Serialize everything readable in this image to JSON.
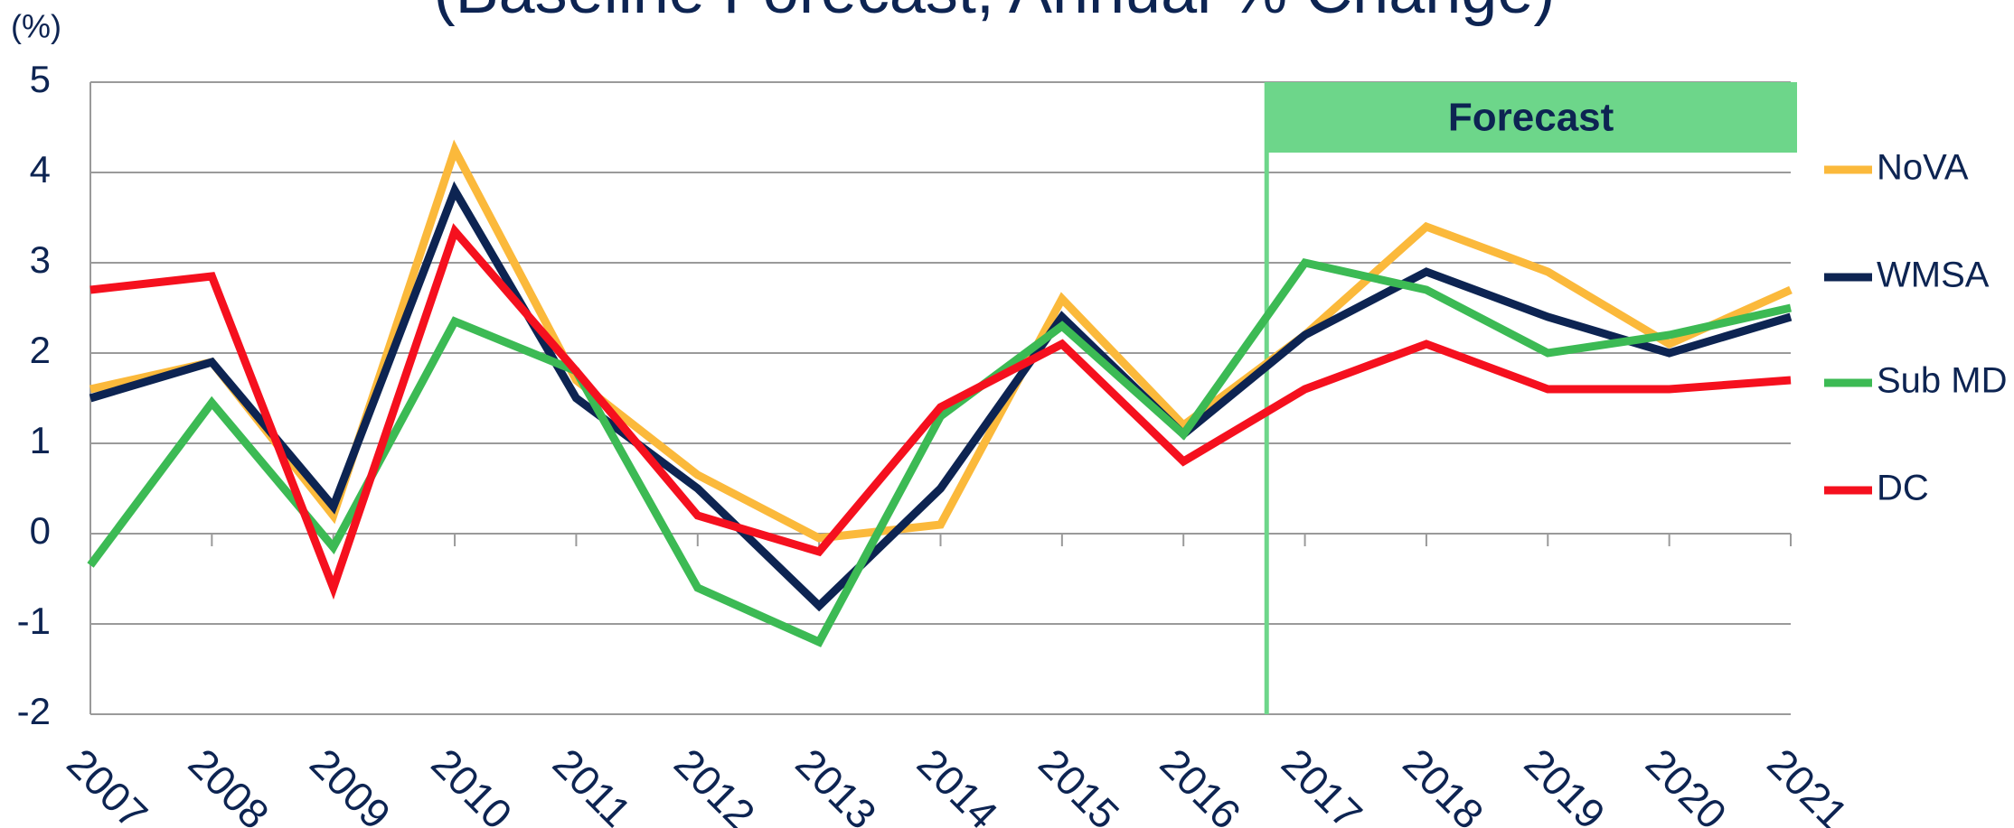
{
  "chart_data": {
    "type": "line",
    "title": "(Baseline Forecast, Annual % Change)",
    "ylabel": "(%)",
    "x": [
      2007,
      2008,
      2009,
      2010,
      2011,
      2012,
      2013,
      2014,
      2015,
      2016,
      2017,
      2018,
      2019,
      2020,
      2021
    ],
    "xlim": [
      2007,
      2021
    ],
    "xticks": [
      2007,
      2008,
      2009,
      2010,
      2011,
      2012,
      2013,
      2014,
      2015,
      2016,
      2017,
      2018,
      2019,
      2020,
      2021
    ],
    "ylim": [
      -2,
      5
    ],
    "yticks": [
      -2,
      -1,
      0,
      1,
      2,
      3,
      4,
      5
    ],
    "grid": true,
    "legend": "right",
    "annotation": {
      "text": "Forecast",
      "x": 2016.67,
      "color": "#6dd68a"
    },
    "series": [
      {
        "name": "NoVA",
        "color": "#fbb93b",
        "values": [
          1.6,
          1.9,
          0.2,
          4.25,
          1.7,
          0.65,
          -0.05,
          0.1,
          2.6,
          1.2,
          2.2,
          3.4,
          2.9,
          2.1,
          2.7
        ]
      },
      {
        "name": "WMSA",
        "color": "#0d2452",
        "values": [
          1.5,
          1.9,
          0.3,
          3.8,
          1.5,
          0.5,
          -0.8,
          0.5,
          2.4,
          1.1,
          2.2,
          2.9,
          2.4,
          2.0,
          2.4
        ]
      },
      {
        "name": "Sub MD",
        "color": "#3cba54",
        "values": [
          -0.35,
          1.45,
          -0.15,
          2.35,
          1.8,
          -0.6,
          -1.2,
          1.3,
          2.3,
          1.1,
          3.0,
          2.7,
          2.0,
          2.2,
          2.5
        ]
      },
      {
        "name": "DC",
        "color": "#f5101e",
        "values": [
          2.7,
          2.85,
          -0.6,
          3.35,
          1.8,
          0.2,
          -0.2,
          1.4,
          2.1,
          0.8,
          1.6,
          2.1,
          1.6,
          1.6,
          1.7
        ]
      }
    ]
  }
}
